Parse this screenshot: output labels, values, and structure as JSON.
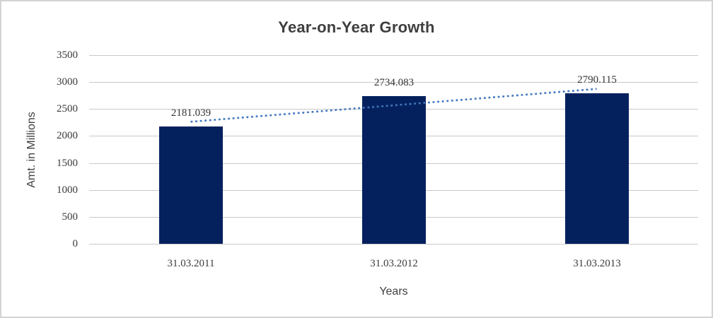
{
  "frame": {
    "background": "#FFFFFF",
    "border_color": "#D3D3D3"
  },
  "chart_data": {
    "type": "bar",
    "title": "Year-on-Year Growth",
    "xlabel": "Years",
    "ylabel": "Amt. in Millions",
    "categories": [
      "31.03.2011",
      "31.03.2012",
      "31.03.2013"
    ],
    "values": [
      2181.039,
      2734.083,
      2790.115
    ],
    "data_labels": [
      "2181.039",
      "2734.083",
      "2790.115"
    ],
    "y_ticks": [
      0,
      500,
      1000,
      1500,
      2000,
      2500,
      3000,
      3500
    ],
    "ylim": [
      0,
      3500
    ],
    "grid": true,
    "legend_position": "none",
    "bar_color": "#04215E",
    "gridline_color": "#C9C9C9",
    "text_color": "#3F3F3F",
    "trendline": {
      "type": "linear",
      "style": "dotted",
      "color": "#4076BF"
    }
  }
}
